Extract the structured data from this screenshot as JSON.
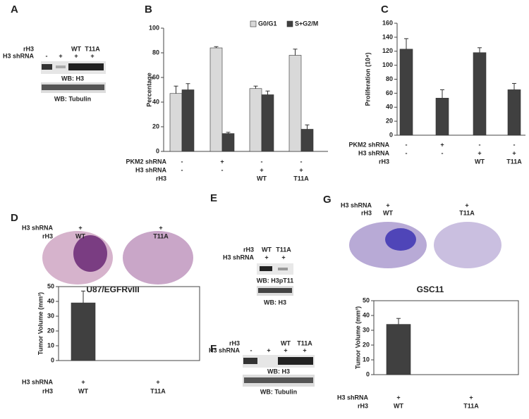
{
  "figure": {
    "panel_labels": [
      "A",
      "B",
      "C",
      "D",
      "E",
      "F",
      "G"
    ],
    "blots": [
      {
        "rows": [
          {
            "name": "rH3",
            "labels": [
              null,
              null,
              "WT",
              "T11A"
            ]
          },
          {
            "name": "H3 shRNA",
            "labels": [
              "-",
              "+",
              "+",
              "+"
            ]
          }
        ],
        "wb": [
          "WB: H3",
          "WB: Tubulin"
        ]
      },
      {
        "rows": [
          {
            "name": "rH3",
            "labels": [
              "WT",
              "T11A"
            ]
          },
          {
            "name": "H3 shRNA",
            "labels": [
              "+",
              "+"
            ]
          }
        ],
        "wb": [
          "WB: H3pT11",
          "WB: H3"
        ]
      },
      {
        "rows": [
          {
            "name": "rH3",
            "labels": [
              null,
              null,
              "WT",
              "T11A"
            ]
          },
          {
            "name": "H3 shRNA",
            "labels": [
              "-",
              "+",
              "+",
              "+"
            ]
          }
        ],
        "wb": [
          "WB: H3",
          "WB: Tubulin"
        ]
      }
    ],
    "xenografts": [
      {
        "rows": [
          {
            "name": "H3 shRNA",
            "labels": [
              "+",
              "+"
            ]
          },
          {
            "name": "rH3",
            "labels": [
              "WT",
              "T11A"
            ]
          }
        ],
        "caption": "U87/EGFRvIII"
      },
      {
        "rows": [
          {
            "name": "H3 shRNA",
            "labels": [
              "+",
              "+"
            ]
          },
          {
            "name": "rH3",
            "labels": [
              "WT",
              "T11A"
            ]
          }
        ],
        "caption": "GSC11"
      }
    ]
  },
  "chart_data": [
    {
      "type": "bar",
      "ylabel": "Percentage",
      "legend": "top",
      "conditions": [
        {
          "name": "PKM2 shRNA",
          "labels": [
            "-",
            "+",
            "-",
            "-"
          ]
        },
        {
          "name": "H3 shRNA",
          "labels": [
            "-",
            "-",
            "+",
            "+"
          ]
        },
        {
          "name": "rH3",
          "labels": [
            null,
            null,
            "WT",
            "T11A"
          ]
        }
      ],
      "series": [
        {
          "name": "G0/G1",
          "color": "#d9d9d9",
          "values": [
            47,
            84,
            51,
            78
          ],
          "errors": [
            6,
            1,
            2,
            5
          ]
        },
        {
          "name": "S+G2/M",
          "color": "#404040",
          "values": [
            50,
            14.5,
            46,
            18
          ],
          "errors": [
            5,
            1,
            3,
            3.5
          ]
        }
      ],
      "ylim": [
        0,
        100
      ],
      "yticks": [
        0,
        20,
        40,
        60,
        80,
        100
      ]
    },
    {
      "type": "bar",
      "ylabel": "Proliferation (10⁴)",
      "conditions": [
        {
          "name": "PKM2 shRNA",
          "labels": [
            "-",
            "+",
            "-",
            "-"
          ]
        },
        {
          "name": "H3 shRNA",
          "labels": [
            "-",
            "-",
            "+",
            "+"
          ]
        },
        {
          "name": "rH3",
          "labels": [
            null,
            null,
            "WT",
            "T11A"
          ]
        }
      ],
      "values": [
        123,
        53,
        118,
        65
      ],
      "errors": [
        15,
        12,
        7,
        9
      ],
      "color": "#404040",
      "ylim": [
        0,
        160
      ],
      "yticks": [
        0,
        20,
        40,
        60,
        80,
        100,
        120,
        140,
        160
      ]
    },
    {
      "type": "bar",
      "ylabel": "Tumor Volume (mm³)",
      "conditions": [
        {
          "name": "H3 shRNA",
          "labels": [
            "+",
            "+"
          ]
        },
        {
          "name": "rH3",
          "labels": [
            "WT",
            "T11A"
          ]
        }
      ],
      "values": [
        39,
        0
      ],
      "errors": [
        8,
        null
      ],
      "color": "#404040",
      "ylim": [
        0,
        50
      ],
      "yticks": [
        0,
        10,
        20,
        30,
        40,
        50
      ]
    },
    {
      "type": "bar",
      "ylabel": "Tumor Volume (mm³)",
      "conditions": [
        {
          "name": "H3 shRNA",
          "labels": [
            "+",
            "+"
          ]
        },
        {
          "name": "rH3",
          "labels": [
            "WT",
            "T11A"
          ]
        }
      ],
      "values": [
        34,
        0
      ],
      "errors": [
        4,
        null
      ],
      "color": "#404040",
      "ylim": [
        0,
        50
      ],
      "yticks": [
        0,
        10,
        20,
        30,
        40,
        50
      ]
    }
  ]
}
